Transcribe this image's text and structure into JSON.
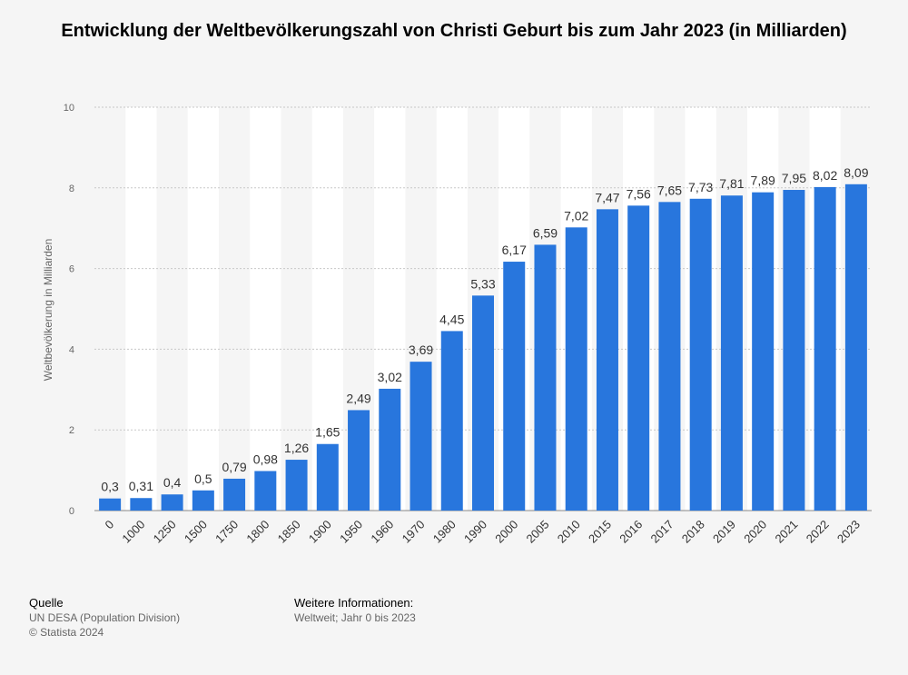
{
  "chart_data": {
    "type": "bar",
    "title": "Entwicklung der Weltbevölkerungszahl von Christi Geburt bis zum Jahr 2023 (in Milliarden)",
    "xlabel": "",
    "ylabel": "Weltbevölkerung in Milliarden",
    "ylim": [
      0,
      10
    ],
    "yticks": [
      "0",
      "2",
      "4",
      "6",
      "8",
      "10"
    ],
    "grid": true,
    "categories": [
      "0",
      "1000",
      "1250",
      "1500",
      "1750",
      "1800",
      "1850",
      "1900",
      "1950",
      "1960",
      "1970",
      "1980",
      "1990",
      "2000",
      "2005",
      "2010",
      "2015",
      "2016",
      "2017",
      "2018",
      "2019",
      "2020",
      "2021",
      "2022",
      "2023"
    ],
    "values": [
      0.3,
      0.31,
      0.4,
      0.5,
      0.79,
      0.98,
      1.26,
      1.65,
      2.49,
      3.02,
      3.69,
      4.45,
      5.33,
      6.17,
      6.59,
      7.02,
      7.47,
      7.56,
      7.65,
      7.73,
      7.81,
      7.89,
      7.95,
      8.02,
      8.09
    ],
    "labels": [
      "0,3",
      "0,31",
      "0,4",
      "0,5",
      "0,79",
      "0,98",
      "1,26",
      "1,65",
      "2,49",
      "3,02",
      "3,69",
      "4,45",
      "5,33",
      "6,17",
      "6,59",
      "7,02",
      "7,47",
      "7,56",
      "7,65",
      "7,73",
      "7,81",
      "7,89",
      "7,95",
      "8,02",
      "8,09"
    ],
    "bar_color": "#2876dd"
  },
  "footer": {
    "source_heading": "Quelle",
    "source_text": "UN DESA (Population Division)",
    "copyright": "© Statista 2024",
    "info_heading": "Weitere Informationen:",
    "info_text": "Weltweit; Jahr 0 bis 2023"
  }
}
